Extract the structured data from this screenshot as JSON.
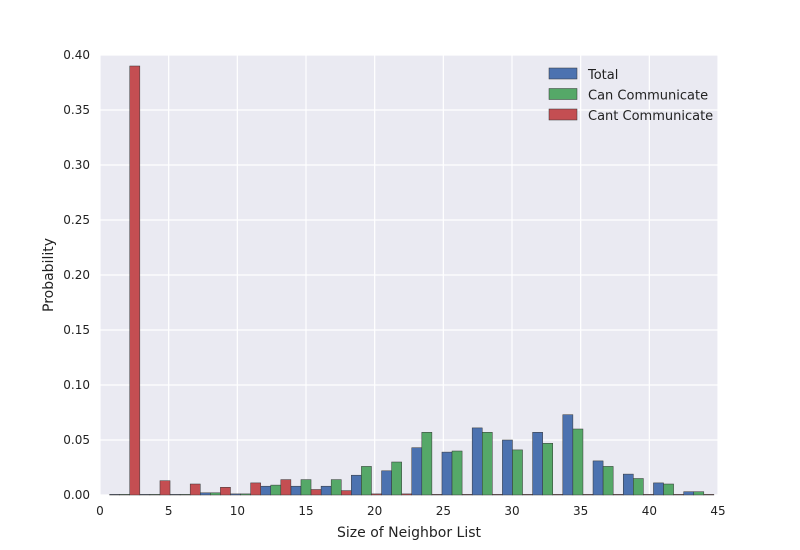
{
  "chart_data": {
    "type": "bar",
    "title": "",
    "xlabel": "Size of Neighbor List",
    "ylabel": "Probability",
    "xlim": [
      0,
      45
    ],
    "ylim": [
      0,
      0.4
    ],
    "xticks": [
      "0",
      "5",
      "10",
      "15",
      "20",
      "25",
      "30",
      "35",
      "40",
      "45"
    ],
    "yticks": [
      "0.00",
      "0.05",
      "0.10",
      "0.15",
      "0.20",
      "0.25",
      "0.30",
      "0.35",
      "0.40"
    ],
    "grid": true,
    "legend_position": "top-right",
    "bin_edges": [
      0.7,
      2.9,
      5.1,
      7.3,
      9.5,
      11.7,
      13.9,
      16.1,
      18.3,
      20.5,
      22.7,
      24.9,
      27.1,
      29.3,
      31.5,
      33.7,
      35.9,
      38.1,
      40.3,
      42.5,
      44.7
    ],
    "series": [
      {
        "name": "Total",
        "color": "#4c72b0",
        "values": [
          0.0,
          0.0,
          0.0,
          0.002,
          0.001,
          0.008,
          0.008,
          0.008,
          0.018,
          0.022,
          0.043,
          0.039,
          0.061,
          0.05,
          0.057,
          0.073,
          0.031,
          0.019,
          0.011,
          0.003
        ]
      },
      {
        "name": "Can Communicate",
        "color": "#55a868",
        "values": [
          0.0,
          0.0,
          0.0,
          0.002,
          0.001,
          0.009,
          0.014,
          0.014,
          0.026,
          0.03,
          0.057,
          0.04,
          0.057,
          0.041,
          0.047,
          0.06,
          0.026,
          0.015,
          0.01,
          0.003
        ]
      },
      {
        "name": "Cant Communicate",
        "color": "#c44e52",
        "values": [
          0.39,
          0.013,
          0.01,
          0.007,
          0.011,
          0.014,
          0.005,
          0.004,
          0.001,
          0.001,
          0.0,
          0.0,
          0.0,
          0.0,
          0.0,
          0.0,
          0.0,
          0.0,
          0.0,
          0.0
        ]
      }
    ]
  }
}
